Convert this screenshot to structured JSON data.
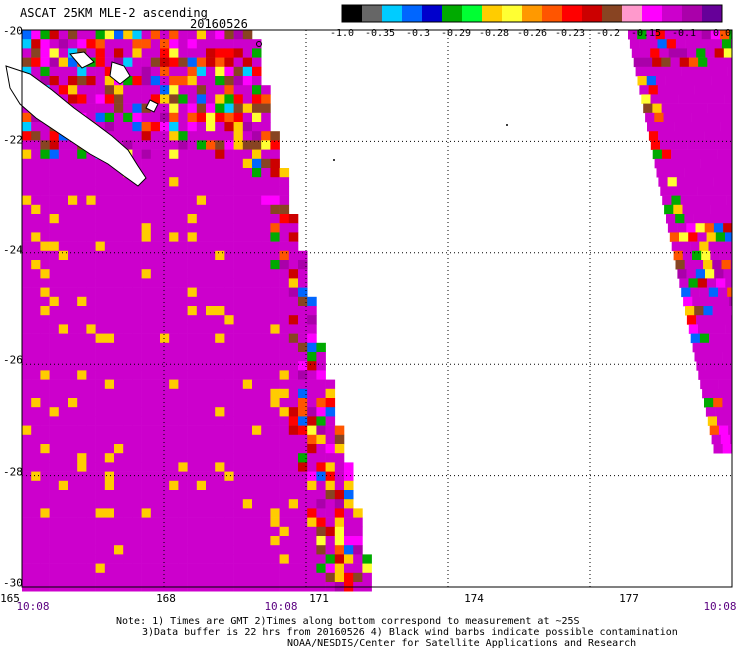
{
  "title": "ASCAT 25KM MLE-2 ascending",
  "date": "20160526",
  "colorbar": {
    "tick_labels": [
      "-1.0",
      "-0.35",
      "-0.3",
      "-0.29",
      "-0.28",
      "-0.26",
      "-0.23",
      "-0.2",
      "-0.15",
      "-0.1",
      "0.0"
    ],
    "colors": [
      "#000000",
      "#666666",
      "#00ccff",
      "#0066ff",
      "#0000cc",
      "#00aa00",
      "#00ff33",
      "#ffcc00",
      "#ffff33",
      "#ff9900",
      "#ff5500",
      "#ff0000",
      "#cc0000",
      "#884422",
      "#ff99cc",
      "#ff00ff",
      "#cc00cc",
      "#aa00aa",
      "#660099"
    ]
  },
  "map": {
    "lon_range": [
      165,
      180
    ],
    "lat_range": [
      -30,
      -20
    ],
    "lon_ticks": [
      "165",
      "168",
      "171",
      "174",
      "177"
    ],
    "lat_ticks": [
      "-20",
      "-22",
      "-24",
      "-26",
      "-28",
      "-30"
    ],
    "swath_color": "#cc00cc"
  },
  "time_labels": [
    {
      "lon": 165,
      "text": "10:08"
    },
    {
      "lon": 171,
      "text": "10:08"
    },
    {
      "lon": 180,
      "text": "10:08"
    }
  ],
  "notes": [
    "Note: 1) Times are GMT 2)Times along bottom correspond to measurement at ~25S",
    "3)Data buffer is 22 hrs from 20160526 4) Black wind barbs indicate possible contamination",
    "NOAA/NESDIS/Center for Satellite Applications and Research"
  ]
}
